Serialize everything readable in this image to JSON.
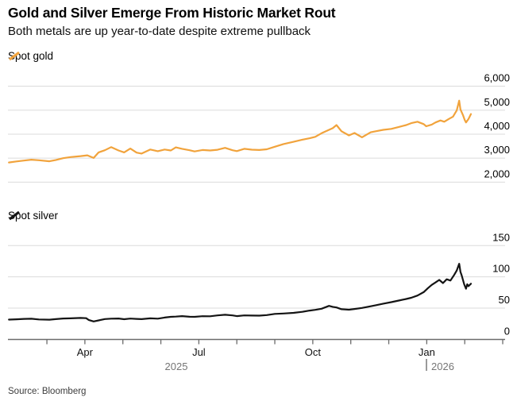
{
  "header": {
    "title": "Gold and Silver Emerge From Historic Market Rout",
    "subtitle": "Both metals are up year-to-date despite extreme pullback"
  },
  "legends": {
    "gold": "Spot gold",
    "silver": "Spot silver"
  },
  "source": "Source: Bloomberg",
  "colors": {
    "gold": "#F1A33C",
    "silver": "#141414",
    "grid": "#DBDBDB",
    "axis": "#6B6B6B",
    "tick_text": "#000000",
    "muted_text": "#757575"
  },
  "xaxis": {
    "labeled_ticks": [
      {
        "label": "Apr",
        "month_index": 3
      },
      {
        "label": "Jul",
        "month_index": 6
      },
      {
        "label": "Oct",
        "month_index": 9
      },
      {
        "label": "Jan",
        "month_index": 12
      }
    ],
    "minor_tick_month_indices": [
      2,
      3,
      4,
      5,
      6,
      7,
      8,
      9,
      10,
      11,
      12,
      13,
      14
    ],
    "year_left": "2025",
    "year_right": "2026"
  },
  "chart_data": [
    {
      "type": "line",
      "name": "Spot gold",
      "title": "Spot gold",
      "color_key": "gold",
      "legend_position": "top-left",
      "grid": true,
      "ylim": [
        2000,
        6000
      ],
      "yticks": [
        {
          "v": 2000,
          "label": "2,000",
          "grid": true
        },
        {
          "v": 3000,
          "label": "3,000",
          "grid": true
        },
        {
          "v": 4000,
          "label": "4,000",
          "grid": true
        },
        {
          "v": 5000,
          "label": "5,000",
          "grid": true
        },
        {
          "v": 6000,
          "label": "6,000",
          "grid": true
        }
      ],
      "x_range": [
        "2025-02-01",
        "2026-02-06"
      ],
      "points": [
        [
          "2025-02-01",
          2820
        ],
        [
          "2025-02-07",
          2865
        ],
        [
          "2025-02-13",
          2900
        ],
        [
          "2025-02-19",
          2935
        ],
        [
          "2025-02-25",
          2915
        ],
        [
          "2025-03-03",
          2870
        ],
        [
          "2025-03-08",
          2920
        ],
        [
          "2025-03-14",
          3000
        ],
        [
          "2025-03-20",
          3045
        ],
        [
          "2025-03-28",
          3085
        ],
        [
          "2025-04-03",
          3120
        ],
        [
          "2025-04-08",
          3010
        ],
        [
          "2025-04-12",
          3240
        ],
        [
          "2025-04-17",
          3330
        ],
        [
          "2025-04-22",
          3460
        ],
        [
          "2025-04-28",
          3320
        ],
        [
          "2025-05-02",
          3240
        ],
        [
          "2025-05-07",
          3400
        ],
        [
          "2025-05-12",
          3230
        ],
        [
          "2025-05-16",
          3190
        ],
        [
          "2025-05-23",
          3360
        ],
        [
          "2025-05-29",
          3290
        ],
        [
          "2025-06-04",
          3360
        ],
        [
          "2025-06-09",
          3320
        ],
        [
          "2025-06-13",
          3450
        ],
        [
          "2025-06-18",
          3390
        ],
        [
          "2025-06-24",
          3330
        ],
        [
          "2025-06-28",
          3280
        ],
        [
          "2025-07-04",
          3340
        ],
        [
          "2025-07-10",
          3320
        ],
        [
          "2025-07-16",
          3350
        ],
        [
          "2025-07-22",
          3430
        ],
        [
          "2025-07-28",
          3330
        ],
        [
          "2025-08-01",
          3295
        ],
        [
          "2025-08-07",
          3390
        ],
        [
          "2025-08-13",
          3355
        ],
        [
          "2025-08-19",
          3340
        ],
        [
          "2025-08-25",
          3370
        ],
        [
          "2025-09-01",
          3475
        ],
        [
          "2025-09-08",
          3590
        ],
        [
          "2025-09-16",
          3680
        ],
        [
          "2025-09-23",
          3770
        ],
        [
          "2025-09-29",
          3830
        ],
        [
          "2025-10-03",
          3890
        ],
        [
          "2025-10-08",
          4040
        ],
        [
          "2025-10-14",
          4180
        ],
        [
          "2025-10-17",
          4250
        ],
        [
          "2025-10-20",
          4380
        ],
        [
          "2025-10-24",
          4120
        ],
        [
          "2025-10-30",
          3950
        ],
        [
          "2025-11-04",
          4050
        ],
        [
          "2025-11-10",
          3870
        ],
        [
          "2025-11-17",
          4080
        ],
        [
          "2025-11-21",
          4120
        ],
        [
          "2025-11-27",
          4180
        ],
        [
          "2025-12-03",
          4220
        ],
        [
          "2025-12-09",
          4300
        ],
        [
          "2025-12-15",
          4380
        ],
        [
          "2025-12-19",
          4460
        ],
        [
          "2025-12-24",
          4520
        ],
        [
          "2025-12-29",
          4420
        ],
        [
          "2025-12-31",
          4330
        ],
        [
          "2026-01-05",
          4400
        ],
        [
          "2026-01-08",
          4490
        ],
        [
          "2026-01-12",
          4570
        ],
        [
          "2026-01-15",
          4520
        ],
        [
          "2026-01-19",
          4640
        ],
        [
          "2026-01-22",
          4730
        ],
        [
          "2026-01-25",
          4990
        ],
        [
          "2026-01-27",
          5400
        ],
        [
          "2026-01-28",
          5030
        ],
        [
          "2026-01-30",
          4800
        ],
        [
          "2026-02-01",
          4590
        ],
        [
          "2026-02-02",
          4490
        ],
        [
          "2026-02-04",
          4630
        ],
        [
          "2026-02-06",
          4840
        ]
      ]
    },
    {
      "type": "line",
      "name": "Spot silver",
      "title": "Spot silver",
      "color_key": "silver",
      "legend_position": "top-left",
      "grid": true,
      "ylim": [
        0,
        150
      ],
      "yticks": [
        {
          "v": 0,
          "label": "0",
          "grid": false
        },
        {
          "v": 50,
          "label": "50",
          "grid": true
        },
        {
          "v": 100,
          "label": "100",
          "grid": true
        },
        {
          "v": 150,
          "label": "150",
          "grid": true
        }
      ],
      "x_range": [
        "2025-02-01",
        "2026-02-06"
      ],
      "points": [
        [
          "2025-02-01",
          31.5
        ],
        [
          "2025-02-07",
          32.0
        ],
        [
          "2025-02-13",
          32.6
        ],
        [
          "2025-02-19",
          32.9
        ],
        [
          "2025-02-25",
          31.8
        ],
        [
          "2025-03-03",
          31.4
        ],
        [
          "2025-03-08",
          32.3
        ],
        [
          "2025-03-14",
          33.3
        ],
        [
          "2025-03-20",
          33.6
        ],
        [
          "2025-03-28",
          34.2
        ],
        [
          "2025-04-02",
          33.8
        ],
        [
          "2025-04-04",
          31.0
        ],
        [
          "2025-04-08",
          28.6
        ],
        [
          "2025-04-12",
          30.3
        ],
        [
          "2025-04-17",
          32.4
        ],
        [
          "2025-04-22",
          33.1
        ],
        [
          "2025-04-28",
          33.3
        ],
        [
          "2025-05-02",
          32.1
        ],
        [
          "2025-05-07",
          33.2
        ],
        [
          "2025-05-12",
          32.6
        ],
        [
          "2025-05-16",
          32.3
        ],
        [
          "2025-05-23",
          33.6
        ],
        [
          "2025-05-29",
          33.0
        ],
        [
          "2025-06-04",
          34.8
        ],
        [
          "2025-06-09",
          36.0
        ],
        [
          "2025-06-13",
          36.3
        ],
        [
          "2025-06-18",
          37.1
        ],
        [
          "2025-06-24",
          36.1
        ],
        [
          "2025-06-28",
          35.9
        ],
        [
          "2025-07-04",
          37.0
        ],
        [
          "2025-07-10",
          36.8
        ],
        [
          "2025-07-16",
          38.2
        ],
        [
          "2025-07-22",
          39.3
        ],
        [
          "2025-07-28",
          38.2
        ],
        [
          "2025-08-01",
          37.1
        ],
        [
          "2025-08-07",
          38.3
        ],
        [
          "2025-08-13",
          38.0
        ],
        [
          "2025-08-19",
          37.9
        ],
        [
          "2025-08-25",
          38.7
        ],
        [
          "2025-09-01",
          40.7
        ],
        [
          "2025-09-08",
          41.3
        ],
        [
          "2025-09-16",
          42.3
        ],
        [
          "2025-09-23",
          44.0
        ],
        [
          "2025-09-29",
          46.0
        ],
        [
          "2025-10-03",
          47.2
        ],
        [
          "2025-10-08",
          48.9
        ],
        [
          "2025-10-14",
          53.5
        ],
        [
          "2025-10-17",
          52.0
        ],
        [
          "2025-10-20",
          51.0
        ],
        [
          "2025-10-24",
          48.2
        ],
        [
          "2025-10-30",
          47.4
        ],
        [
          "2025-11-04",
          48.6
        ],
        [
          "2025-11-10",
          50.2
        ],
        [
          "2025-11-17",
          52.8
        ],
        [
          "2025-11-21",
          54.5
        ],
        [
          "2025-11-27",
          57.0
        ],
        [
          "2025-12-03",
          59.5
        ],
        [
          "2025-12-09",
          62.0
        ],
        [
          "2025-12-15",
          64.5
        ],
        [
          "2025-12-19",
          66.5
        ],
        [
          "2025-12-24",
          70.0
        ],
        [
          "2025-12-29",
          75.5
        ],
        [
          "2026-01-02",
          82.0
        ],
        [
          "2026-01-05",
          87.0
        ],
        [
          "2026-01-08",
          91.0
        ],
        [
          "2026-01-11",
          95.0
        ],
        [
          "2026-01-14",
          90.0
        ],
        [
          "2026-01-17",
          96.0
        ],
        [
          "2026-01-20",
          94.0
        ],
        [
          "2026-01-23",
          103.0
        ],
        [
          "2026-01-25",
          110.0
        ],
        [
          "2026-01-27",
          121.0
        ],
        [
          "2026-01-28",
          108.0
        ],
        [
          "2026-01-29",
          102.0
        ],
        [
          "2026-01-31",
          88.0
        ],
        [
          "2026-02-02",
          81.0
        ],
        [
          "2026-02-03",
          88.0
        ],
        [
          "2026-02-04",
          85.0
        ],
        [
          "2026-02-06",
          89.0
        ]
      ]
    }
  ]
}
